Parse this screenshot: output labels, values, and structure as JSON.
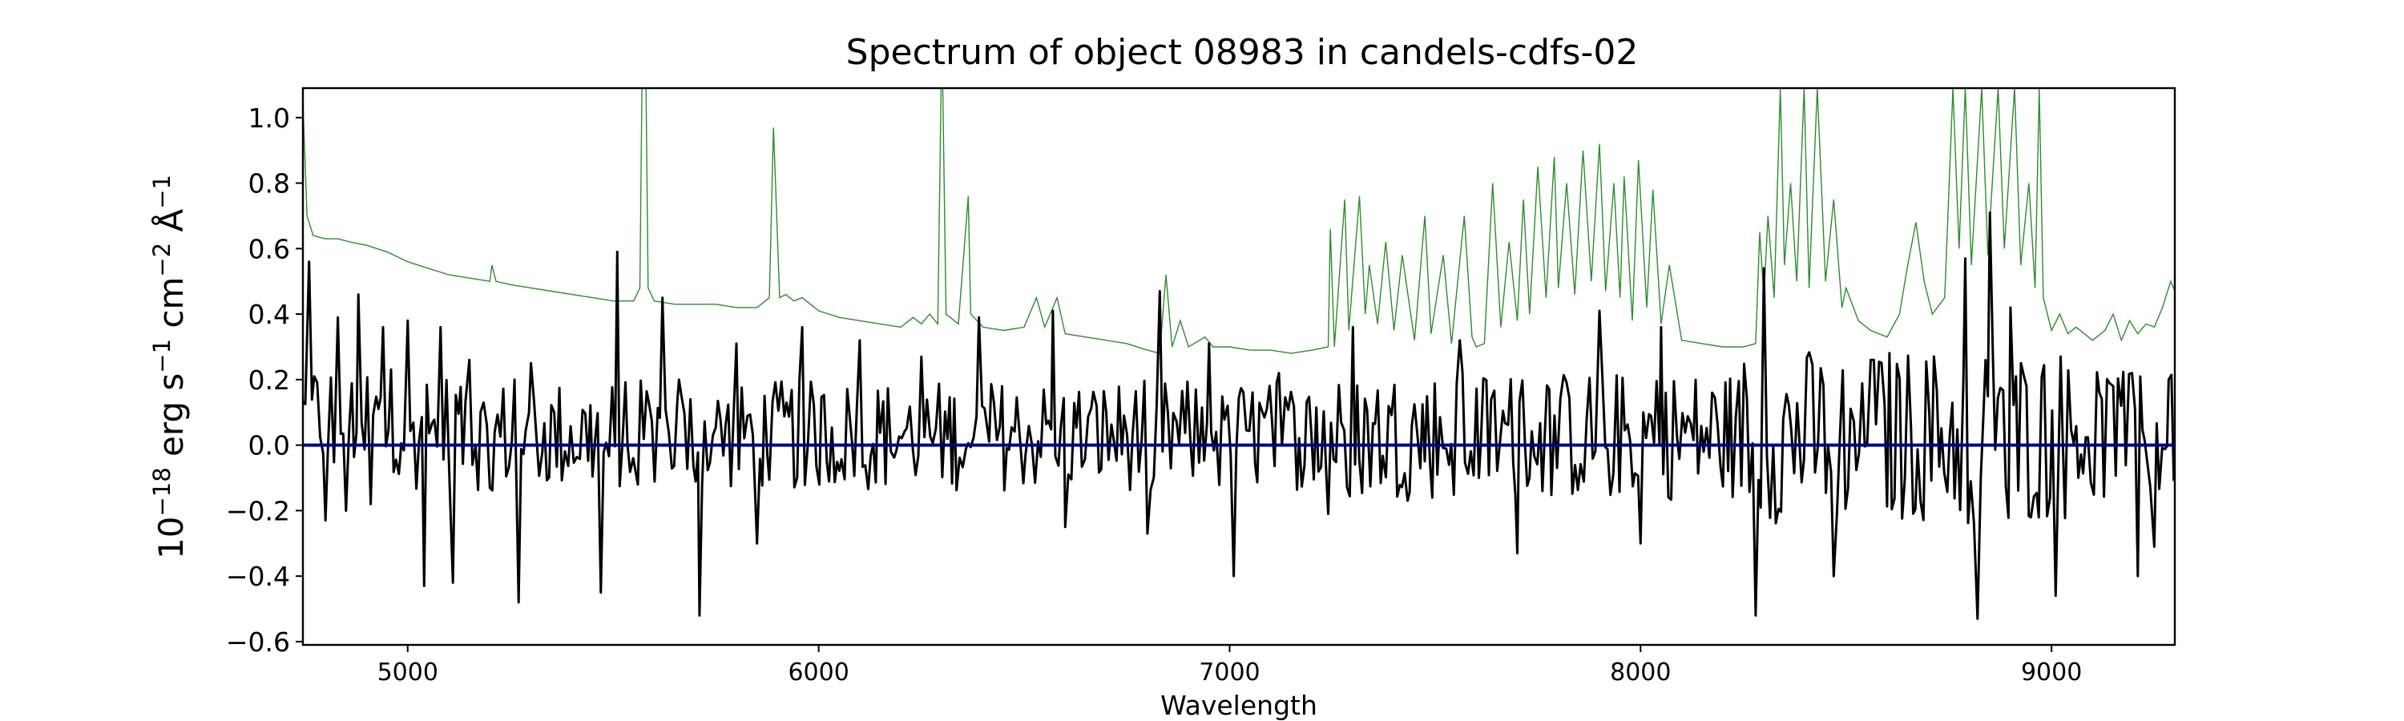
{
  "chart_data": {
    "type": "line",
    "title": "Spectrum of object 08983 in candels-cdfs-02",
    "xlabel": "Wavelength",
    "ylabel_parts": [
      "10",
      "−18",
      " erg s",
      "−1",
      " cm",
      "−2",
      " Å",
      "−1"
    ],
    "xlim": [
      4745,
      9300
    ],
    "ylim": [
      -0.61,
      1.09
    ],
    "xticks": [
      5000,
      6000,
      7000,
      8000,
      9000
    ],
    "yticks": [
      {
        "value": 1.0,
        "label": "1.0"
      },
      {
        "value": 0.8,
        "label": "0.8"
      },
      {
        "value": 0.6,
        "label": "0.6"
      },
      {
        "value": 0.4,
        "label": "0.4"
      },
      {
        "value": 0.2,
        "label": "0.2"
      },
      {
        "value": 0.0,
        "label": "0.0"
      },
      {
        "value": -0.2,
        "label": "−0.2"
      },
      {
        "value": -0.4,
        "label": "−0.4"
      },
      {
        "value": -0.6,
        "label": "−0.6"
      }
    ],
    "grid": false,
    "legend": "none",
    "series": [
      {
        "role": "error",
        "color": "#2e8b2e",
        "points": [
          [
            4745,
            1.05
          ],
          [
            4755,
            0.7
          ],
          [
            4770,
            0.64
          ],
          [
            4800,
            0.63
          ],
          [
            4830,
            0.63
          ],
          [
            4860,
            0.62
          ],
          [
            4900,
            0.61
          ],
          [
            4950,
            0.59
          ],
          [
            5000,
            0.56
          ],
          [
            5050,
            0.54
          ],
          [
            5100,
            0.52
          ],
          [
            5150,
            0.51
          ],
          [
            5200,
            0.5
          ],
          [
            5205,
            0.55
          ],
          [
            5215,
            0.5
          ],
          [
            5250,
            0.49
          ],
          [
            5300,
            0.48
          ],
          [
            5350,
            0.47
          ],
          [
            5400,
            0.46
          ],
          [
            5450,
            0.45
          ],
          [
            5500,
            0.44
          ],
          [
            5550,
            0.44
          ],
          [
            5565,
            0.48
          ],
          [
            5570,
            1.09
          ],
          [
            5580,
            1.09
          ],
          [
            5585,
            0.48
          ],
          [
            5600,
            0.44
          ],
          [
            5650,
            0.43
          ],
          [
            5700,
            0.43
          ],
          [
            5750,
            0.43
          ],
          [
            5800,
            0.42
          ],
          [
            5850,
            0.42
          ],
          [
            5880,
            0.45
          ],
          [
            5890,
            0.97
          ],
          [
            5895,
            0.8
          ],
          [
            5905,
            0.45
          ],
          [
            5920,
            0.46
          ],
          [
            5940,
            0.44
          ],
          [
            5960,
            0.45
          ],
          [
            5980,
            0.43
          ],
          [
            6000,
            0.41
          ],
          [
            6050,
            0.39
          ],
          [
            6100,
            0.38
          ],
          [
            6150,
            0.37
          ],
          [
            6200,
            0.36
          ],
          [
            6230,
            0.39
          ],
          [
            6250,
            0.37
          ],
          [
            6270,
            0.4
          ],
          [
            6290,
            0.37
          ],
          [
            6298,
            1.09
          ],
          [
            6302,
            1.09
          ],
          [
            6310,
            0.4
          ],
          [
            6340,
            0.37
          ],
          [
            6364,
            0.76
          ],
          [
            6370,
            0.4
          ],
          [
            6400,
            0.36
          ],
          [
            6450,
            0.35
          ],
          [
            6500,
            0.36
          ],
          [
            6530,
            0.45
          ],
          [
            6550,
            0.36
          ],
          [
            6580,
            0.45
          ],
          [
            6600,
            0.34
          ],
          [
            6650,
            0.33
          ],
          [
            6700,
            0.32
          ],
          [
            6750,
            0.31
          ],
          [
            6800,
            0.29
          ],
          [
            6830,
            0.28
          ],
          [
            6845,
            0.52
          ],
          [
            6860,
            0.3
          ],
          [
            6880,
            0.38
          ],
          [
            6900,
            0.3
          ],
          [
            6940,
            0.33
          ],
          [
            6960,
            0.3
          ],
          [
            7000,
            0.3
          ],
          [
            7050,
            0.29
          ],
          [
            7100,
            0.29
          ],
          [
            7150,
            0.28
          ],
          [
            7200,
            0.29
          ],
          [
            7240,
            0.3
          ],
          [
            7245,
            0.66
          ],
          [
            7255,
            0.3
          ],
          [
            7280,
            0.75
          ],
          [
            7290,
            0.35
          ],
          [
            7316,
            0.76
          ],
          [
            7330,
            0.4
          ],
          [
            7340,
            0.55
          ],
          [
            7360,
            0.37
          ],
          [
            7380,
            0.62
          ],
          [
            7400,
            0.35
          ],
          [
            7420,
            0.58
          ],
          [
            7450,
            0.32
          ],
          [
            7475,
            0.7
          ],
          [
            7490,
            0.34
          ],
          [
            7520,
            0.58
          ],
          [
            7540,
            0.31
          ],
          [
            7571,
            0.7
          ],
          [
            7590,
            0.33
          ],
          [
            7600,
            0.3
          ],
          [
            7620,
            0.31
          ],
          [
            7640,
            0.8
          ],
          [
            7660,
            0.36
          ],
          [
            7680,
            0.62
          ],
          [
            7700,
            0.38
          ],
          [
            7715,
            0.75
          ],
          [
            7730,
            0.4
          ],
          [
            7750,
            0.85
          ],
          [
            7770,
            0.45
          ],
          [
            7790,
            0.88
          ],
          [
            7800,
            0.48
          ],
          [
            7820,
            0.8
          ],
          [
            7840,
            0.46
          ],
          [
            7860,
            0.9
          ],
          [
            7880,
            0.5
          ],
          [
            7900,
            0.92
          ],
          [
            7915,
            0.47
          ],
          [
            7935,
            0.8
          ],
          [
            7950,
            0.45
          ],
          [
            7960,
            0.82
          ],
          [
            7980,
            0.38
          ],
          [
            7995,
            0.87
          ],
          [
            8015,
            0.42
          ],
          [
            8030,
            0.78
          ],
          [
            8050,
            0.37
          ],
          [
            8070,
            0.55
          ],
          [
            8100,
            0.32
          ],
          [
            8150,
            0.31
          ],
          [
            8200,
            0.3
          ],
          [
            8250,
            0.3
          ],
          [
            8280,
            0.31
          ],
          [
            8290,
            0.65
          ],
          [
            8300,
            0.45
          ],
          [
            8310,
            0.7
          ],
          [
            8325,
            0.45
          ],
          [
            8340,
            1.09
          ],
          [
            8350,
            0.55
          ],
          [
            8365,
            0.8
          ],
          [
            8380,
            0.5
          ],
          [
            8398,
            1.09
          ],
          [
            8410,
            0.48
          ],
          [
            8430,
            1.09
          ],
          [
            8450,
            0.5
          ],
          [
            8470,
            0.75
          ],
          [
            8490,
            0.42
          ],
          [
            8500,
            0.48
          ],
          [
            8530,
            0.38
          ],
          [
            8560,
            0.35
          ],
          [
            8600,
            0.33
          ],
          [
            8630,
            0.4
          ],
          [
            8650,
            0.55
          ],
          [
            8670,
            0.68
          ],
          [
            8690,
            0.5
          ],
          [
            8710,
            0.4
          ],
          [
            8740,
            0.45
          ],
          [
            8760,
            1.09
          ],
          [
            8775,
            0.6
          ],
          [
            8790,
            1.09
          ],
          [
            8805,
            0.55
          ],
          [
            8830,
            1.09
          ],
          [
            8845,
            0.58
          ],
          [
            8870,
            1.09
          ],
          [
            8885,
            0.6
          ],
          [
            8910,
            1.09
          ],
          [
            8925,
            0.55
          ],
          [
            8945,
            0.8
          ],
          [
            8960,
            0.48
          ],
          [
            8970,
            1.09
          ],
          [
            8980,
            0.45
          ],
          [
            9000,
            0.35
          ],
          [
            9020,
            0.4
          ],
          [
            9040,
            0.34
          ],
          [
            9060,
            0.36
          ],
          [
            9100,
            0.32
          ],
          [
            9130,
            0.35
          ],
          [
            9150,
            0.4
          ],
          [
            9170,
            0.32
          ],
          [
            9190,
            0.38
          ],
          [
            9210,
            0.34
          ],
          [
            9230,
            0.37
          ],
          [
            9250,
            0.36
          ],
          [
            9270,
            0.42
          ],
          [
            9290,
            0.5
          ],
          [
            9300,
            0.47
          ]
        ]
      },
      {
        "role": "flux",
        "color": "#000000",
        "spikes": [
          [
            4760,
            0.56
          ],
          [
            4800,
            -0.23
          ],
          [
            4830,
            0.39
          ],
          [
            4850,
            -0.2
          ],
          [
            4880,
            0.46
          ],
          [
            4910,
            -0.18
          ],
          [
            4940,
            0.36
          ],
          [
            5000,
            0.38
          ],
          [
            5040,
            -0.43
          ],
          [
            5080,
            0.36
          ],
          [
            5110,
            -0.42
          ],
          [
            5150,
            0.26
          ],
          [
            5200,
            -0.13
          ],
          [
            5260,
            0.2
          ],
          [
            5270,
            -0.48
          ],
          [
            5300,
            0.25
          ],
          [
            5400,
            0.3
          ],
          [
            5470,
            -0.45
          ],
          [
            5510,
            0.59
          ],
          [
            5560,
            -0.12
          ],
          [
            5620,
            0.45
          ],
          [
            5660,
            0.2
          ],
          [
            5710,
            -0.52
          ],
          [
            5800,
            0.31
          ],
          [
            5850,
            -0.3
          ],
          [
            5960,
            0.36
          ],
          [
            6100,
            0.32
          ],
          [
            6250,
            0.27
          ],
          [
            6390,
            0.39
          ],
          [
            6570,
            0.41
          ],
          [
            6600,
            -0.25
          ],
          [
            6800,
            -0.27
          ],
          [
            6830,
            0.47
          ],
          [
            6950,
            0.31
          ],
          [
            7010,
            -0.4
          ],
          [
            7120,
            0.22
          ],
          [
            7240,
            -0.21
          ],
          [
            7300,
            0.36
          ],
          [
            7560,
            0.32
          ],
          [
            7700,
            -0.33
          ],
          [
            7900,
            0.41
          ],
          [
            8000,
            -0.3
          ],
          [
            8050,
            0.36
          ],
          [
            8280,
            -0.52
          ],
          [
            8300,
            0.54
          ],
          [
            8370,
            -0.51
          ],
          [
            8470,
            -0.4
          ],
          [
            8560,
            0.26
          ],
          [
            8790,
            0.57
          ],
          [
            8820,
            -0.53
          ],
          [
            8850,
            0.71
          ],
          [
            8900,
            0.42
          ],
          [
            9010,
            -0.46
          ],
          [
            9150,
            0.18
          ],
          [
            9210,
            -0.4
          ],
          [
            9250,
            -0.31
          ],
          [
            9285,
            0.2
          ]
        ]
      },
      {
        "role": "zero",
        "color": "#00008b",
        "value": 0.0
      }
    ]
  }
}
